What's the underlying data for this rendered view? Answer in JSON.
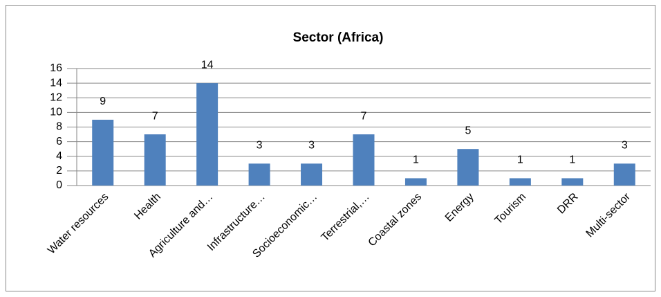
{
  "chart_data": {
    "type": "bar",
    "title": "Sector (Africa)",
    "categories": [
      "Water resources",
      "Health",
      "Agriculture and…",
      "Infrastructure…",
      "Socioeconomic…",
      "Terrestrial,…",
      "Coastal zones",
      "Energy",
      "Tourism",
      "DRR",
      "Multi-sector"
    ],
    "values": [
      9,
      7,
      14,
      3,
      3,
      7,
      1,
      5,
      1,
      1,
      3
    ],
    "color": "#4f81bd",
    "ylim": [
      0,
      16
    ],
    "yticks": [
      0,
      2,
      4,
      6,
      8,
      10,
      12,
      14,
      16
    ],
    "grid": true
  }
}
